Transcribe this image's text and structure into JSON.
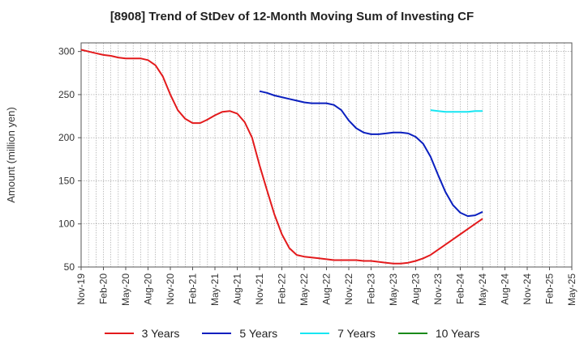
{
  "chart_data": {
    "type": "line",
    "title": "[8908]  Trend of StDev of 12-Month Moving Sum of Investing CF",
    "ylabel": "Amount (million yen)",
    "xlabel": "",
    "ylim": [
      50,
      310
    ],
    "yticks": [
      50,
      100,
      150,
      200,
      250,
      300
    ],
    "grid": true,
    "legend_position": "bottom",
    "categories": [
      "Nov-19",
      "Feb-20",
      "May-20",
      "Aug-20",
      "Nov-20",
      "Feb-21",
      "May-21",
      "Aug-21",
      "Nov-21",
      "Feb-22",
      "May-22",
      "Aug-22",
      "Nov-22",
      "Feb-23",
      "May-23",
      "Aug-23",
      "Nov-23",
      "Feb-24",
      "May-24",
      "Aug-24",
      "Nov-24",
      "Feb-25",
      "May-25"
    ],
    "x_start": "2019-11",
    "x_end": "2025-05",
    "series": [
      {
        "name": "3 Years",
        "color": "#e31a1c",
        "points": [
          [
            "2019-11",
            302
          ],
          [
            "2019-12",
            300
          ],
          [
            "2020-01",
            298
          ],
          [
            "2020-02",
            296
          ],
          [
            "2020-03",
            295
          ],
          [
            "2020-04",
            293
          ],
          [
            "2020-05",
            292
          ],
          [
            "2020-06",
            292
          ],
          [
            "2020-07",
            292
          ],
          [
            "2020-08",
            290
          ],
          [
            "2020-09",
            284
          ],
          [
            "2020-10",
            271
          ],
          [
            "2020-11",
            250
          ],
          [
            "2020-12",
            232
          ],
          [
            "2021-01",
            222
          ],
          [
            "2021-02",
            217
          ],
          [
            "2021-03",
            217
          ],
          [
            "2021-04",
            221
          ],
          [
            "2021-05",
            226
          ],
          [
            "2021-06",
            230
          ],
          [
            "2021-07",
            231
          ],
          [
            "2021-08",
            228
          ],
          [
            "2021-09",
            218
          ],
          [
            "2021-10",
            200
          ],
          [
            "2021-11",
            168
          ],
          [
            "2021-12",
            139
          ],
          [
            "2022-01",
            111
          ],
          [
            "2022-02",
            88
          ],
          [
            "2022-03",
            72
          ],
          [
            "2022-04",
            64
          ],
          [
            "2022-05",
            62
          ],
          [
            "2022-06",
            61
          ],
          [
            "2022-07",
            60
          ],
          [
            "2022-08",
            59
          ],
          [
            "2022-09",
            58
          ],
          [
            "2022-10",
            58
          ],
          [
            "2022-11",
            58
          ],
          [
            "2022-12",
            58
          ],
          [
            "2023-01",
            57
          ],
          [
            "2023-02",
            57
          ],
          [
            "2023-03",
            56
          ],
          [
            "2023-04",
            55
          ],
          [
            "2023-05",
            54
          ],
          [
            "2023-06",
            54
          ],
          [
            "2023-07",
            55
          ],
          [
            "2023-08",
            57
          ],
          [
            "2023-09",
            60
          ],
          [
            "2023-10",
            64
          ],
          [
            "2023-11",
            70
          ],
          [
            "2023-12",
            76
          ],
          [
            "2024-01",
            82
          ],
          [
            "2024-02",
            88
          ],
          [
            "2024-03",
            94
          ],
          [
            "2024-04",
            100
          ],
          [
            "2024-05",
            106
          ]
        ]
      },
      {
        "name": "5 Years",
        "color": "#0a1fbf",
        "points": [
          [
            "2021-11",
            254
          ],
          [
            "2021-12",
            252
          ],
          [
            "2022-01",
            249
          ],
          [
            "2022-02",
            247
          ],
          [
            "2022-03",
            245
          ],
          [
            "2022-04",
            243
          ],
          [
            "2022-05",
            241
          ],
          [
            "2022-06",
            240
          ],
          [
            "2022-07",
            240
          ],
          [
            "2022-08",
            240
          ],
          [
            "2022-09",
            238
          ],
          [
            "2022-10",
            232
          ],
          [
            "2022-11",
            220
          ],
          [
            "2022-12",
            211
          ],
          [
            "2023-01",
            206
          ],
          [
            "2023-02",
            204
          ],
          [
            "2023-03",
            204
          ],
          [
            "2023-04",
            205
          ],
          [
            "2023-05",
            206
          ],
          [
            "2023-06",
            206
          ],
          [
            "2023-07",
            205
          ],
          [
            "2023-08",
            201
          ],
          [
            "2023-09",
            193
          ],
          [
            "2023-10",
            178
          ],
          [
            "2023-11",
            157
          ],
          [
            "2023-12",
            137
          ],
          [
            "2024-01",
            122
          ],
          [
            "2024-02",
            113
          ],
          [
            "2024-03",
            109
          ],
          [
            "2024-04",
            110
          ],
          [
            "2024-05",
            114
          ]
        ]
      },
      {
        "name": "7 Years",
        "color": "#17e6f2",
        "points": [
          [
            "2023-10",
            232
          ],
          [
            "2023-11",
            231
          ],
          [
            "2023-12",
            230
          ],
          [
            "2024-01",
            230
          ],
          [
            "2024-02",
            230
          ],
          [
            "2024-03",
            230
          ],
          [
            "2024-04",
            231
          ],
          [
            "2024-05",
            231
          ]
        ]
      },
      {
        "name": "10 Years",
        "color": "#1a8a1a",
        "points": []
      }
    ]
  }
}
